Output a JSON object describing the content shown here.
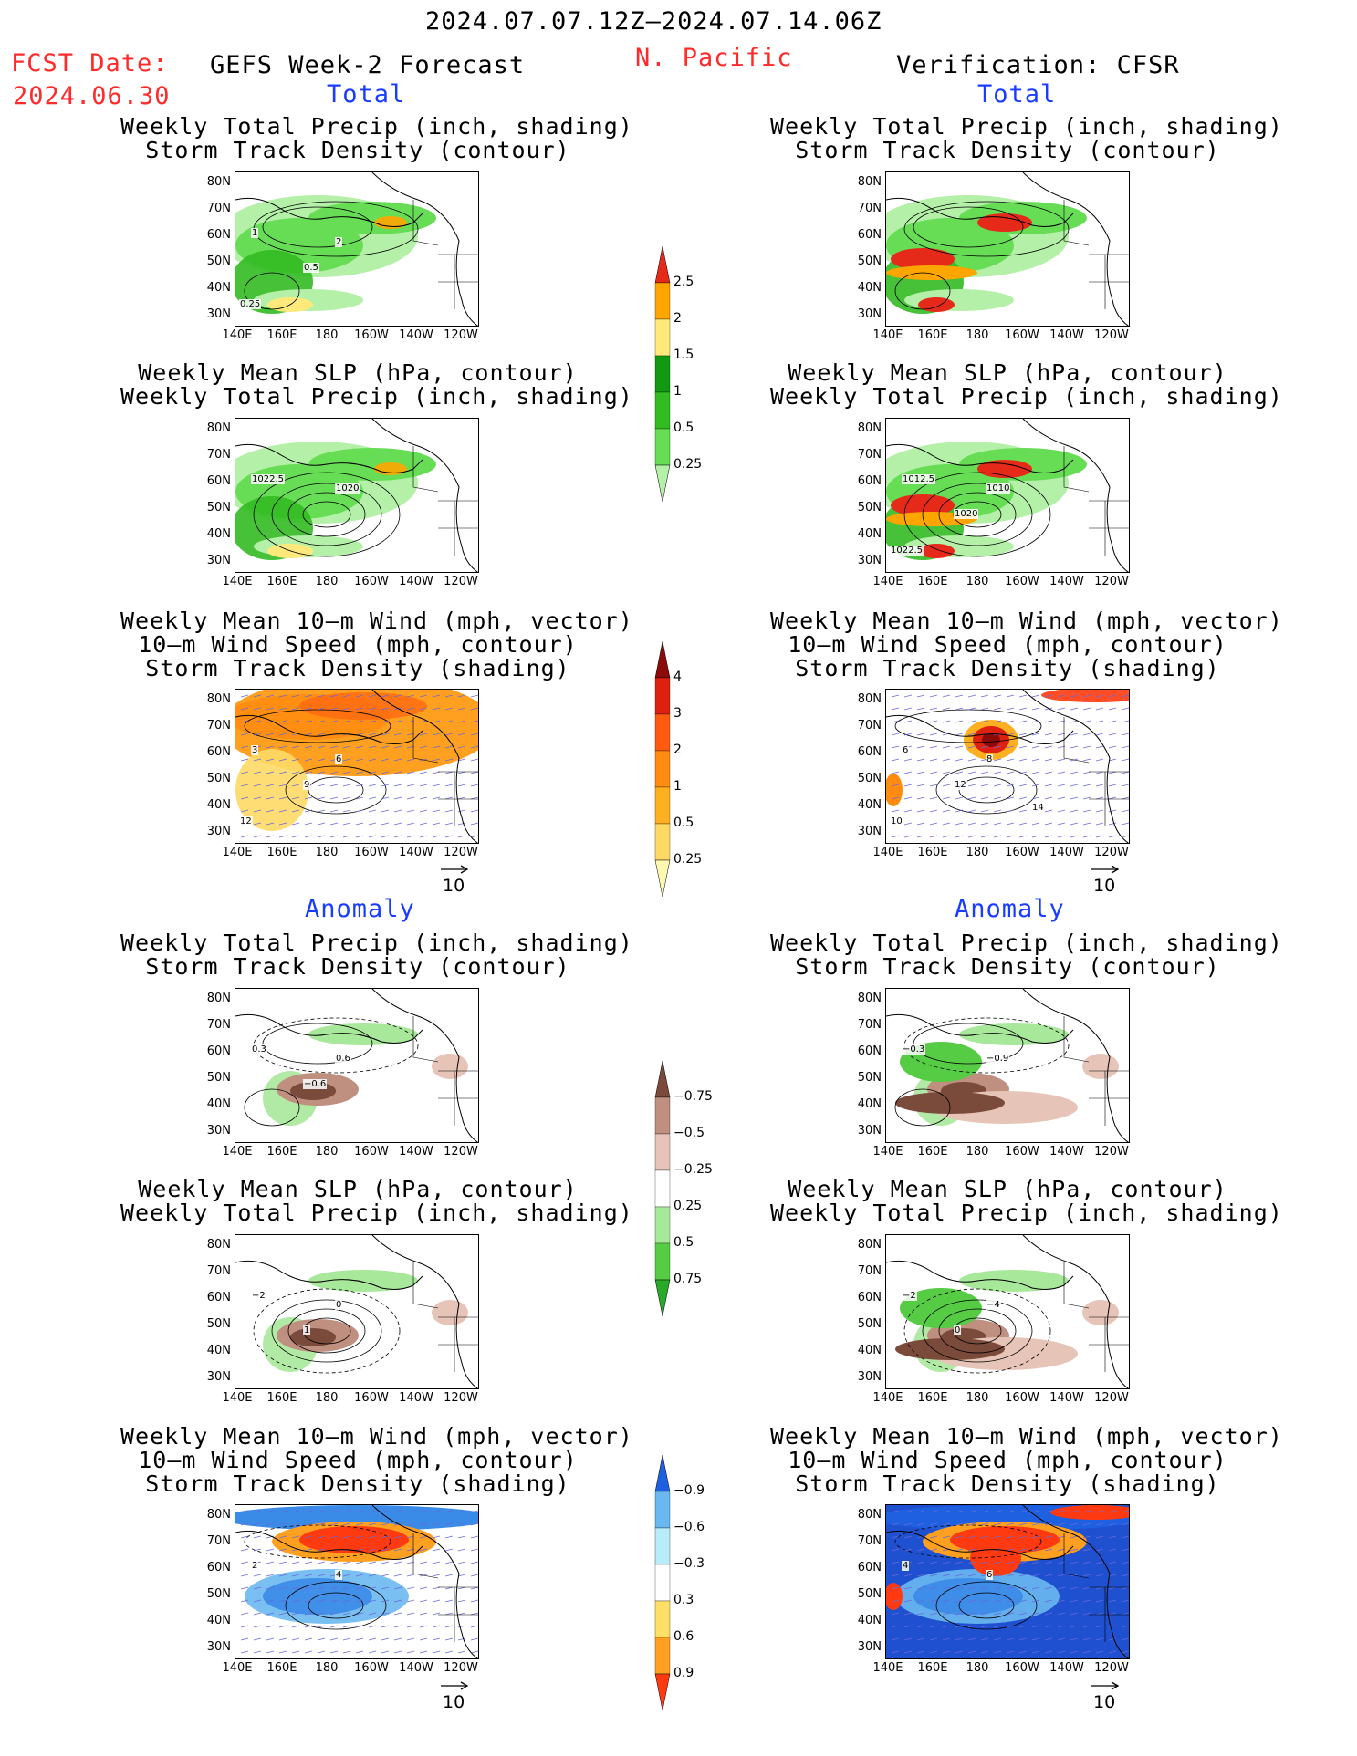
{
  "header": {
    "period": "2024.07.07.12Z–2024.07.14.06Z",
    "fcst_label": "FCST Date:",
    "fcst_date": "2024.06.30",
    "model": "GEFS Week-2 Forecast",
    "region": "N. Pacific",
    "verification": "Verification: CFSR"
  },
  "sections": {
    "total": "Total",
    "anomaly": "Anomaly"
  },
  "titles": {
    "precip_storm": [
      "Weekly Total Precip (inch, shading)",
      "Storm Track Density (contour)"
    ],
    "slp_precip": [
      "Weekly Mean SLP (hPa, contour)",
      "Weekly Total Precip (inch, shading)"
    ],
    "wind_storm": [
      "Weekly Mean 10–m Wind (mph, vector)",
      "10–m Wind Speed (mph, contour)",
      "Storm Track Density (shading)"
    ]
  },
  "axes": {
    "lat_ticks": [
      "80N",
      "70N",
      "60N",
      "50N",
      "40N",
      "30N"
    ],
    "lon_ticks": [
      "140E",
      "160E",
      "180",
      "160W",
      "140W",
      "120W"
    ]
  },
  "vector_scale": "10",
  "colorbars": {
    "precip_total": {
      "labels": [
        "0.25",
        "0.5",
        "1",
        "1.5",
        "2",
        "2.5"
      ],
      "colors": [
        "#b4f0a8",
        "#66dd55",
        "#33bb22",
        "#119911",
        "#ffe97a",
        "#ffa500",
        "#e62a1a"
      ]
    },
    "storm_total": {
      "labels": [
        "0.25",
        "0.5",
        "1",
        "2",
        "3",
        "4"
      ],
      "colors": [
        "#fff8b0",
        "#ffd966",
        "#ffb020",
        "#ff8c10",
        "#ff5a10",
        "#dd2010",
        "#8b0a0a"
      ]
    },
    "precip_anom": {
      "labels": [
        "0.75",
        "0.5",
        "0.25",
        "−0.25",
        "−0.5",
        "−0.75"
      ],
      "colors": [
        "#2aa82a",
        "#55cc44",
        "#a8e89a",
        "#ffffff",
        "#e6c4b8",
        "#bf8f80",
        "#7a4a3a"
      ]
    },
    "storm_anom": {
      "labels": [
        "0.9",
        "0.6",
        "0.3",
        "−0.3",
        "−0.6",
        "−0.9"
      ],
      "colors": [
        "#ff3a10",
        "#ffa020",
        "#ffe066",
        "#ffffff",
        "#b8ecf8",
        "#6ab8f0",
        "#1e60e0"
      ]
    }
  },
  "contour_labels": {
    "fc_precip_total": [
      "1",
      "2",
      "0.5",
      "0.25"
    ],
    "fc_slp_total": [
      "1022.5",
      "1020"
    ],
    "ob_slp_total": [
      "1012.5",
      "1010",
      "1020",
      "1022.5"
    ],
    "fc_wind_total": [
      "3",
      "6",
      "9",
      "12"
    ],
    "ob_wind_total": [
      "6",
      "8",
      "12",
      "10",
      "14"
    ],
    "fc_precip_anom": [
      "0.3",
      "0.6",
      "−0.6"
    ],
    "ob_precip_anom": [
      "−0.3",
      "−0.9"
    ],
    "fc_slp_anom": [
      "−2",
      "0",
      "1"
    ],
    "ob_slp_anom": [
      "−2",
      "−4",
      "0"
    ],
    "fc_wind_anom": [
      "2",
      "4"
    ],
    "ob_wind_anom": [
      "4",
      "6"
    ]
  }
}
